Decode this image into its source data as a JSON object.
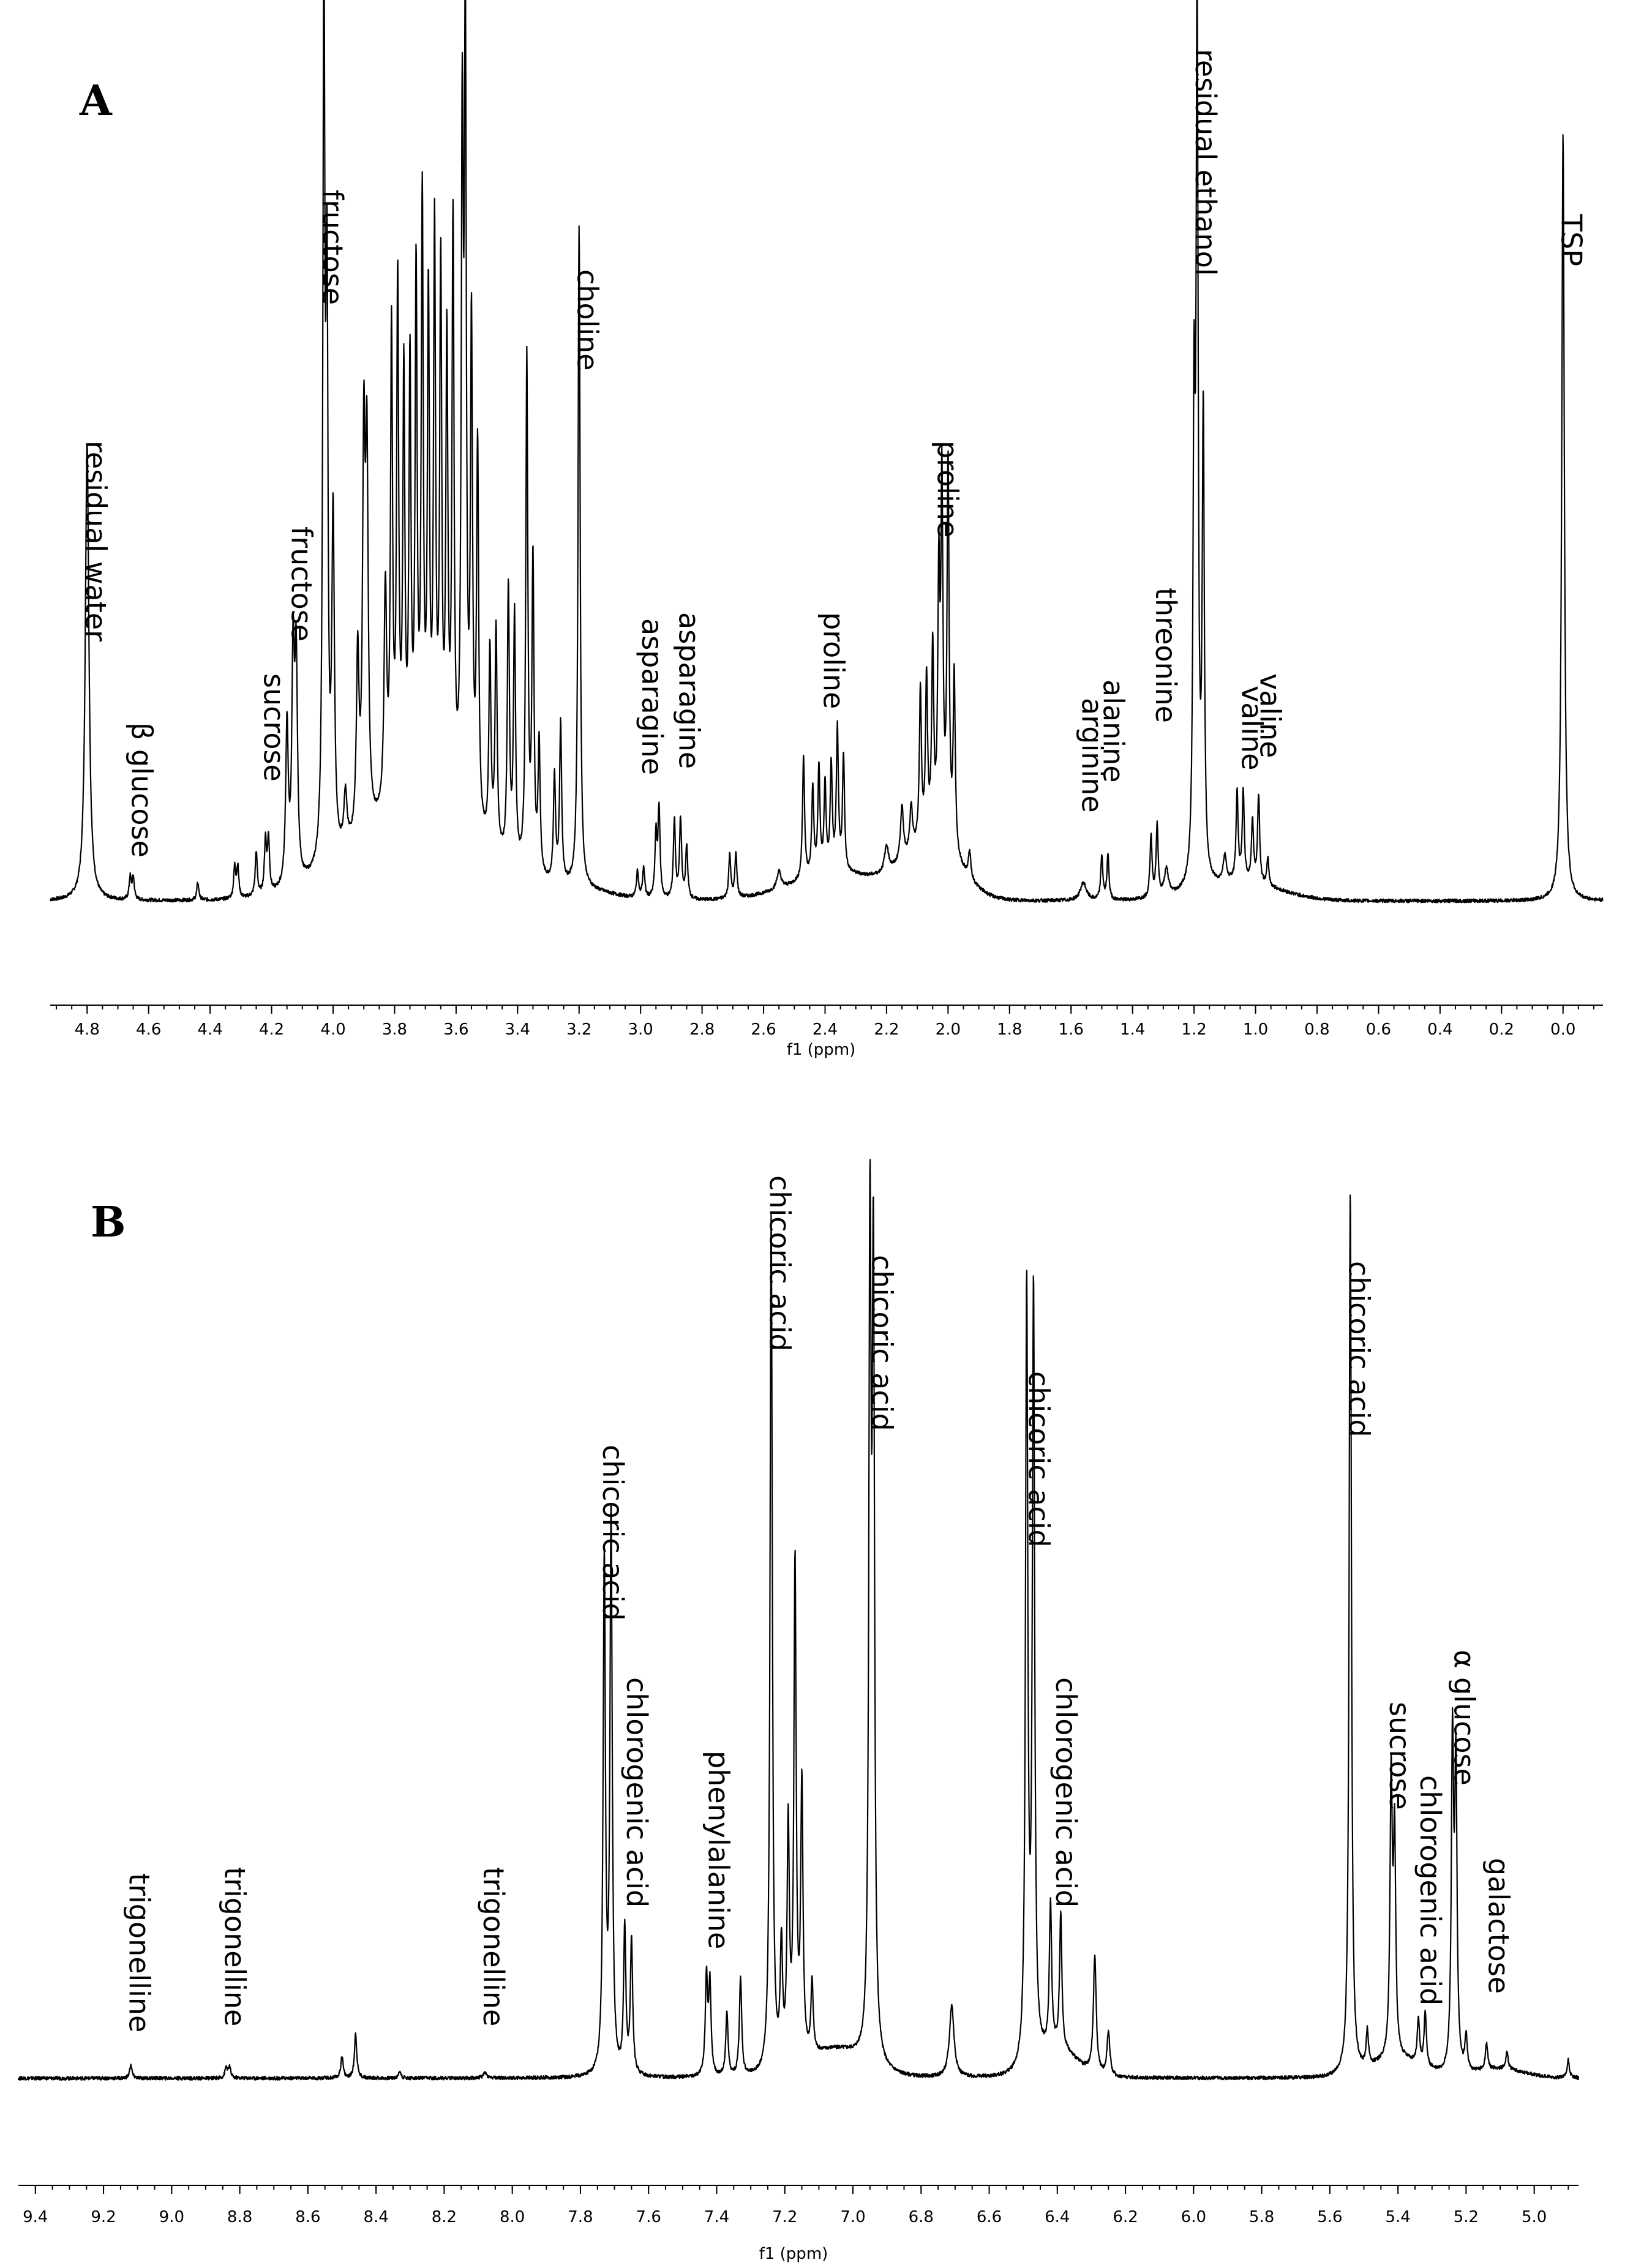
{
  "chart_data": [
    {
      "type": "line",
      "panel": "A",
      "xlabel": "f1 (ppm)",
      "xlim": [
        4.92,
        -0.13
      ],
      "xticks": [
        "4.8",
        "4.6",
        "4.4",
        "4.2",
        "4.0",
        "3.8",
        "3.6",
        "3.4",
        "3.2",
        "3.0",
        "2.8",
        "2.6",
        "2.4",
        "2.2",
        "2.0",
        "1.8",
        "1.6",
        "1.4",
        "1.2",
        "1.0",
        "0.8",
        "0.6",
        "0.4",
        "0.2",
        "0.0"
      ],
      "peaks": [
        {
          "x": 4.8,
          "y": 0.52,
          "w": 0.007
        },
        {
          "x": 4.66,
          "y": 0.025,
          "w": 0.004
        },
        {
          "x": 4.65,
          "y": 0.025,
          "w": 0.004
        },
        {
          "x": 4.44,
          "y": 0.02,
          "w": 0.004
        },
        {
          "x": 4.32,
          "y": 0.035,
          "w": 0.004
        },
        {
          "x": 4.31,
          "y": 0.035,
          "w": 0.004
        },
        {
          "x": 4.25,
          "y": 0.05,
          "w": 0.004
        },
        {
          "x": 4.22,
          "y": 0.06,
          "w": 0.004
        },
        {
          "x": 4.21,
          "y": 0.06,
          "w": 0.004
        },
        {
          "x": 4.15,
          "y": 0.18,
          "w": 0.005
        },
        {
          "x": 4.13,
          "y": 0.25,
          "w": 0.005
        },
        {
          "x": 4.12,
          "y": 0.24,
          "w": 0.005
        },
        {
          "x": 4.03,
          "y": 0.98,
          "w": 0.004
        },
        {
          "x": 4.02,
          "y": 0.6,
          "w": 0.004
        },
        {
          "x": 4.0,
          "y": 0.38,
          "w": 0.005
        },
        {
          "x": 3.96,
          "y": 0.06,
          "w": 0.006
        },
        {
          "x": 3.92,
          "y": 0.2,
          "w": 0.005
        },
        {
          "x": 3.9,
          "y": 0.42,
          "w": 0.005
        },
        {
          "x": 3.89,
          "y": 0.4,
          "w": 0.005
        },
        {
          "x": 3.83,
          "y": 0.25,
          "w": 0.005
        },
        {
          "x": 3.81,
          "y": 0.53,
          "w": 0.004
        },
        {
          "x": 3.79,
          "y": 0.58,
          "w": 0.004
        },
        {
          "x": 3.77,
          "y": 0.47,
          "w": 0.004
        },
        {
          "x": 3.75,
          "y": 0.48,
          "w": 0.004
        },
        {
          "x": 3.73,
          "y": 0.58,
          "w": 0.004
        },
        {
          "x": 3.71,
          "y": 0.66,
          "w": 0.004
        },
        {
          "x": 3.69,
          "y": 0.55,
          "w": 0.004
        },
        {
          "x": 3.67,
          "y": 0.63,
          "w": 0.004
        },
        {
          "x": 3.65,
          "y": 0.59,
          "w": 0.004
        },
        {
          "x": 3.63,
          "y": 0.51,
          "w": 0.004
        },
        {
          "x": 3.61,
          "y": 0.65,
          "w": 0.004
        },
        {
          "x": 3.58,
          "y": 0.73,
          "w": 0.004
        },
        {
          "x": 3.57,
          "y": 0.85,
          "w": 0.004
        },
        {
          "x": 3.55,
          "y": 0.55,
          "w": 0.004
        },
        {
          "x": 3.53,
          "y": 0.43,
          "w": 0.004
        },
        {
          "x": 3.49,
          "y": 0.22,
          "w": 0.004
        },
        {
          "x": 3.47,
          "y": 0.25,
          "w": 0.004
        },
        {
          "x": 3.43,
          "y": 0.31,
          "w": 0.004
        },
        {
          "x": 3.41,
          "y": 0.28,
          "w": 0.004
        },
        {
          "x": 3.37,
          "y": 0.58,
          "w": 0.004
        },
        {
          "x": 3.35,
          "y": 0.35,
          "w": 0.004
        },
        {
          "x": 3.33,
          "y": 0.15,
          "w": 0.004
        },
        {
          "x": 3.28,
          "y": 0.12,
          "w": 0.004
        },
        {
          "x": 3.26,
          "y": 0.18,
          "w": 0.004
        },
        {
          "x": 3.2,
          "y": 0.75,
          "w": 0.004
        },
        {
          "x": 3.01,
          "y": 0.03,
          "w": 0.004
        },
        {
          "x": 2.99,
          "y": 0.035,
          "w": 0.004
        },
        {
          "x": 2.95,
          "y": 0.07,
          "w": 0.004
        },
        {
          "x": 2.94,
          "y": 0.1,
          "w": 0.004
        },
        {
          "x": 2.89,
          "y": 0.09,
          "w": 0.004
        },
        {
          "x": 2.87,
          "y": 0.09,
          "w": 0.004
        },
        {
          "x": 2.85,
          "y": 0.06,
          "w": 0.004
        },
        {
          "x": 2.71,
          "y": 0.05,
          "w": 0.004
        },
        {
          "x": 2.69,
          "y": 0.05,
          "w": 0.004
        },
        {
          "x": 2.55,
          "y": 0.02,
          "w": 0.008
        },
        {
          "x": 2.47,
          "y": 0.14,
          "w": 0.004
        },
        {
          "x": 2.44,
          "y": 0.1,
          "w": 0.004
        },
        {
          "x": 2.42,
          "y": 0.12,
          "w": 0.004
        },
        {
          "x": 2.4,
          "y": 0.1,
          "w": 0.004
        },
        {
          "x": 2.38,
          "y": 0.12,
          "w": 0.004
        },
        {
          "x": 2.36,
          "y": 0.16,
          "w": 0.004
        },
        {
          "x": 2.34,
          "y": 0.13,
          "w": 0.004
        },
        {
          "x": 2.2,
          "y": 0.03,
          "w": 0.008
        },
        {
          "x": 2.15,
          "y": 0.06,
          "w": 0.006
        },
        {
          "x": 2.12,
          "y": 0.05,
          "w": 0.005
        },
        {
          "x": 2.09,
          "y": 0.17,
          "w": 0.004
        },
        {
          "x": 2.07,
          "y": 0.18,
          "w": 0.004
        },
        {
          "x": 2.05,
          "y": 0.21,
          "w": 0.004
        },
        {
          "x": 2.03,
          "y": 0.28,
          "w": 0.004
        },
        {
          "x": 2.02,
          "y": 0.39,
          "w": 0.004
        },
        {
          "x": 2.0,
          "y": 0.43,
          "w": 0.004
        },
        {
          "x": 1.98,
          "y": 0.2,
          "w": 0.004
        },
        {
          "x": 1.93,
          "y": 0.03,
          "w": 0.005
        },
        {
          "x": 1.56,
          "y": 0.02,
          "w": 0.012
        },
        {
          "x": 1.5,
          "y": 0.05,
          "w": 0.004
        },
        {
          "x": 1.48,
          "y": 0.05,
          "w": 0.004
        },
        {
          "x": 1.34,
          "y": 0.07,
          "w": 0.004
        },
        {
          "x": 1.32,
          "y": 0.08,
          "w": 0.004
        },
        {
          "x": 1.29,
          "y": 0.03,
          "w": 0.008
        },
        {
          "x": 1.2,
          "y": 0.5,
          "w": 0.004
        },
        {
          "x": 1.19,
          "y": 0.97,
          "w": 0.004
        },
        {
          "x": 1.17,
          "y": 0.52,
          "w": 0.004
        },
        {
          "x": 1.1,
          "y": 0.03,
          "w": 0.006
        },
        {
          "x": 1.06,
          "y": 0.1,
          "w": 0.004
        },
        {
          "x": 1.04,
          "y": 0.1,
          "w": 0.004
        },
        {
          "x": 1.01,
          "y": 0.07,
          "w": 0.004
        },
        {
          "x": 0.99,
          "y": 0.1,
          "w": 0.004
        },
        {
          "x": 0.96,
          "y": 0.03,
          "w": 0.004
        },
        {
          "x": 0.0,
          "y": 0.87,
          "w": 0.005
        }
      ],
      "humps": [
        {
          "x": 3.72,
          "y": 0.1,
          "w": 0.28
        },
        {
          "x": 3.2,
          "y": 0.01,
          "w": 0.15
        },
        {
          "x": 2.35,
          "y": 0.03,
          "w": 0.22
        },
        {
          "x": 2.05,
          "y": 0.06,
          "w": 0.12
        },
        {
          "x": 1.05,
          "y": 0.02,
          "w": 0.18
        }
      ],
      "labels": [
        {
          "text": "residual water",
          "x": 4.8
        },
        {
          "text": "β glucose",
          "x": 4.65
        },
        {
          "text": "sucrose",
          "x": 4.22
        },
        {
          "text": "fructose",
          "x": 4.13
        },
        {
          "text": "fructose",
          "x": 4.03
        },
        {
          "text": "choline",
          "x": 3.2
        },
        {
          "text": "asparagine",
          "x": 2.99
        },
        {
          "text": "asparagine",
          "x": 2.87
        },
        {
          "text": "proline",
          "x": 2.4
        },
        {
          "text": "proline",
          "x": 2.03
        },
        {
          "text": "arginine",
          "x": 1.56
        },
        {
          "text": "alanine",
          "x": 1.49
        },
        {
          "text": "threonine",
          "x": 1.32
        },
        {
          "text": "residual ethanol",
          "x": 1.19
        },
        {
          "text": "valine",
          "x": 1.04
        },
        {
          "text": "valine",
          "x": 0.98
        },
        {
          "text": "TSP",
          "x": 0.0
        }
      ]
    },
    {
      "type": "line",
      "panel": "B",
      "xlabel": "f1 (ppm)",
      "xlim": [
        9.45,
        4.87
      ],
      "xticks": [
        "9.4",
        "9.2",
        "9.0",
        "8.8",
        "8.6",
        "8.4",
        "8.2",
        "8.0",
        "7.8",
        "7.6",
        "7.4",
        "7.2",
        "7.0",
        "6.8",
        "6.6",
        "6.4",
        "6.2",
        "6.0",
        "5.8",
        "5.6",
        "5.4",
        "5.2",
        "5.0"
      ],
      "peaks": [
        {
          "x": 9.12,
          "y": 0.015,
          "w": 0.004
        },
        {
          "x": 8.84,
          "y": 0.012,
          "w": 0.004
        },
        {
          "x": 8.83,
          "y": 0.012,
          "w": 0.004
        },
        {
          "x": 8.5,
          "y": 0.025,
          "w": 0.004
        },
        {
          "x": 8.46,
          "y": 0.05,
          "w": 0.004
        },
        {
          "x": 8.33,
          "y": 0.008,
          "w": 0.004
        },
        {
          "x": 8.08,
          "y": 0.006,
          "w": 0.006
        },
        {
          "x": 7.73,
          "y": 0.57,
          "w": 0.004
        },
        {
          "x": 7.71,
          "y": 0.62,
          "w": 0.004
        },
        {
          "x": 7.67,
          "y": 0.16,
          "w": 0.004
        },
        {
          "x": 7.65,
          "y": 0.15,
          "w": 0.004
        },
        {
          "x": 7.43,
          "y": 0.11,
          "w": 0.004
        },
        {
          "x": 7.42,
          "y": 0.1,
          "w": 0.004
        },
        {
          "x": 7.37,
          "y": 0.07,
          "w": 0.004
        },
        {
          "x": 7.33,
          "y": 0.11,
          "w": 0.004
        },
        {
          "x": 7.24,
          "y": 0.95,
          "w": 0.004
        },
        {
          "x": 7.21,
          "y": 0.13,
          "w": 0.004
        },
        {
          "x": 7.19,
          "y": 0.26,
          "w": 0.004
        },
        {
          "x": 7.17,
          "y": 0.55,
          "w": 0.004
        },
        {
          "x": 7.15,
          "y": 0.3,
          "w": 0.004
        },
        {
          "x": 7.12,
          "y": 0.08,
          "w": 0.004
        },
        {
          "x": 6.95,
          "y": 0.89,
          "w": 0.004
        },
        {
          "x": 6.94,
          "y": 0.85,
          "w": 0.004
        },
        {
          "x": 6.71,
          "y": 0.08,
          "w": 0.008
        },
        {
          "x": 6.49,
          "y": 0.86,
          "w": 0.004
        },
        {
          "x": 6.47,
          "y": 0.85,
          "w": 0.004
        },
        {
          "x": 6.42,
          "y": 0.16,
          "w": 0.004
        },
        {
          "x": 6.39,
          "y": 0.15,
          "w": 0.004
        },
        {
          "x": 6.29,
          "y": 0.13,
          "w": 0.005
        },
        {
          "x": 6.25,
          "y": 0.05,
          "w": 0.005
        },
        {
          "x": 5.54,
          "y": 0.98,
          "w": 0.004
        },
        {
          "x": 5.49,
          "y": 0.04,
          "w": 0.004
        },
        {
          "x": 5.42,
          "y": 0.31,
          "w": 0.004
        },
        {
          "x": 5.41,
          "y": 0.24,
          "w": 0.004
        },
        {
          "x": 5.34,
          "y": 0.05,
          "w": 0.004
        },
        {
          "x": 5.32,
          "y": 0.06,
          "w": 0.004
        },
        {
          "x": 5.24,
          "y": 0.36,
          "w": 0.004
        },
        {
          "x": 5.23,
          "y": 0.33,
          "w": 0.004
        },
        {
          "x": 5.2,
          "y": 0.04,
          "w": 0.004
        },
        {
          "x": 5.14,
          "y": 0.03,
          "w": 0.004
        },
        {
          "x": 5.08,
          "y": 0.02,
          "w": 0.004
        },
        {
          "x": 4.9,
          "y": 0.02,
          "w": 0.004
        }
      ],
      "humps": [
        {
          "x": 7.05,
          "y": 0.03,
          "w": 0.12
        },
        {
          "x": 6.4,
          "y": 0.03,
          "w": 0.08
        },
        {
          "x": 5.4,
          "y": 0.02,
          "w": 0.1
        },
        {
          "x": 5.1,
          "y": 0.01,
          "w": 0.1
        }
      ],
      "labels": [
        {
          "text": "trigonelline",
          "x": 9.12
        },
        {
          "text": "trigonelline",
          "x": 8.84
        },
        {
          "text": "trigonelline",
          "x": 8.08
        },
        {
          "text": "chicoric acid",
          "x": 7.73
        },
        {
          "text": "chlorogenic acid",
          "x": 7.66
        },
        {
          "text": "phenylalanine",
          "x": 7.42
        },
        {
          "text": "chicoric acid",
          "x": 7.24
        },
        {
          "text": "chicoric acid",
          "x": 6.94
        },
        {
          "text": "chicoric acid",
          "x": 6.48
        },
        {
          "text": "chlorogenic acid",
          "x": 6.4
        },
        {
          "text": "chicoric acid",
          "x": 5.54
        },
        {
          "text": "sucrose",
          "x": 5.42
        },
        {
          "text": "chlorogenic acid",
          "x": 5.33
        },
        {
          "text": "α glucose",
          "x": 5.23
        },
        {
          "text": "galactose",
          "x": 5.13
        }
      ]
    }
  ]
}
